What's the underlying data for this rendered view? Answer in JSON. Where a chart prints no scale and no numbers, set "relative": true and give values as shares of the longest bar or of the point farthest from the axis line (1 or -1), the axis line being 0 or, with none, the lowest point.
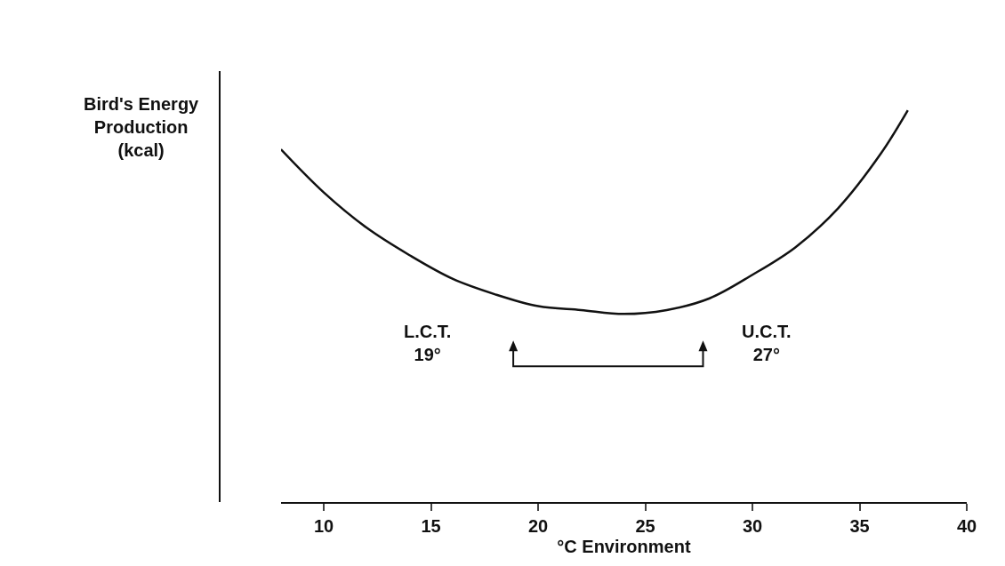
{
  "chart_data": {
    "type": "line",
    "relative": true,
    "xlabel": "°C Environment",
    "ylabel": "Bird's Energy\nProduction\n(kcal)",
    "x": [
      8,
      10,
      12,
      14,
      16,
      18,
      20,
      22,
      24,
      26,
      28,
      30,
      32,
      34,
      36,
      37.25
    ],
    "series": [
      {
        "color": "#111111",
        "values": [
          0.9,
          0.79,
          0.7,
          0.63,
          0.57,
          0.53,
          0.5,
          0.49,
          0.48,
          0.49,
          0.52,
          0.58,
          0.65,
          0.75,
          0.89,
          1
        ]
      }
    ],
    "xlim": [
      8,
      40
    ],
    "xticks": [
      10,
      15,
      20,
      25,
      30,
      35,
      40
    ],
    "grid": false,
    "marker": "none",
    "line_style": "solid",
    "annotations": [
      "L.C.T.\n19°",
      "U.C.T.\n27°"
    ]
  }
}
